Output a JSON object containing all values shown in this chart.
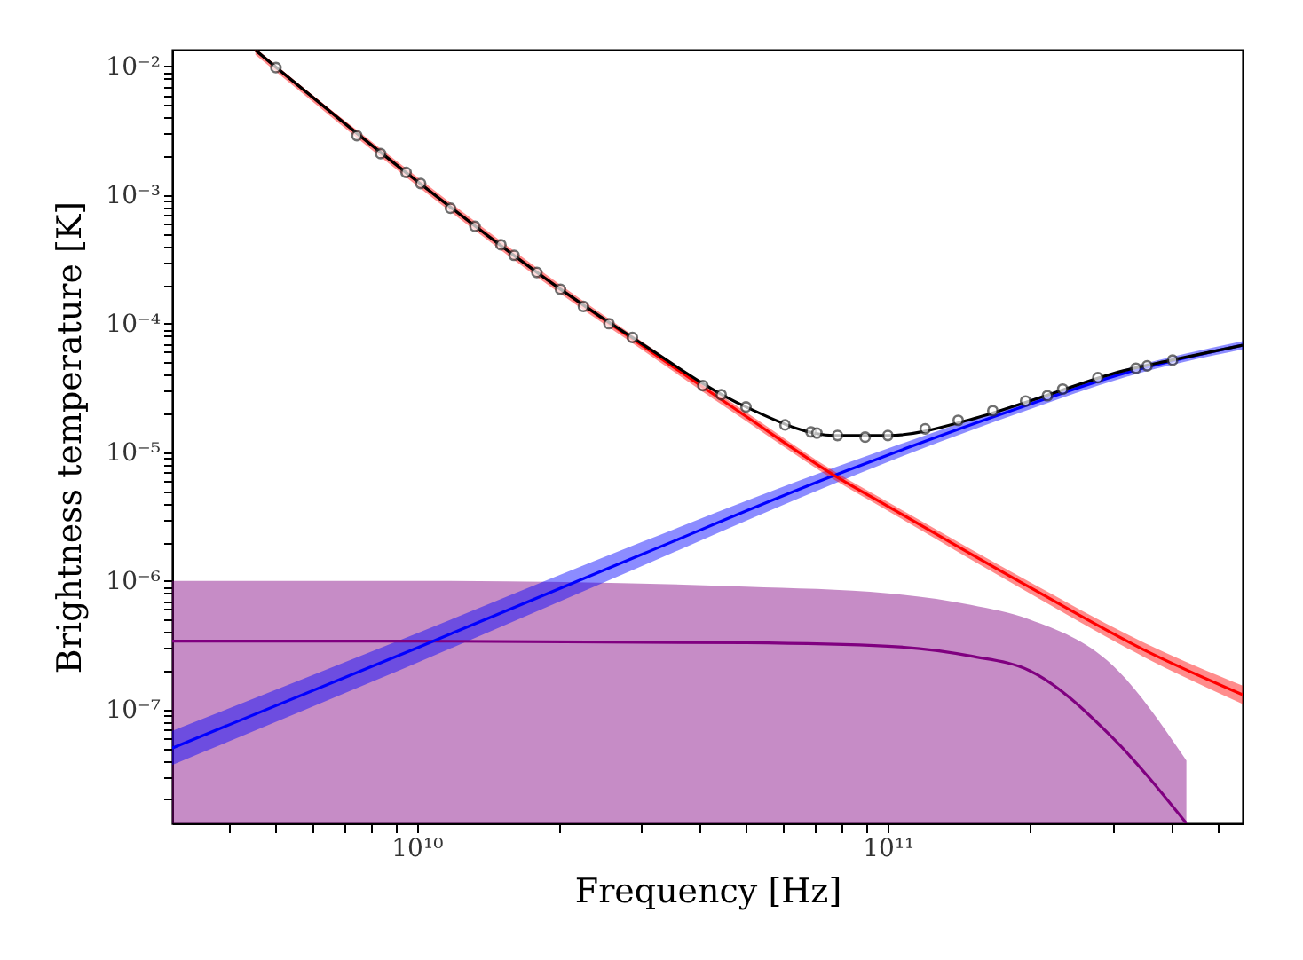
{
  "chart_data": {
    "type": "line",
    "xlabel": "Frequency [Hz]",
    "ylabel": "Brightness temperature [K]",
    "log": "xy",
    "grid": false,
    "xlim": [
      3030000000.0,
      566000000000.0
    ],
    "ylim": [
      1.3e-08,
      0.0135
    ],
    "xticks": [
      {
        "value": 4000000000.0,
        "label": null
      },
      {
        "value": 5000000000.0,
        "label": null
      },
      {
        "value": 6000000000.0,
        "label": null
      },
      {
        "value": 7000000000.0,
        "label": null
      },
      {
        "value": 8000000000.0,
        "label": null
      },
      {
        "value": 9000000000.0,
        "label": null
      },
      {
        "value": 10000000000.0,
        "label": "10¹⁰"
      },
      {
        "value": 20000000000.0,
        "label": null
      },
      {
        "value": 30000000000.0,
        "label": null
      },
      {
        "value": 40000000000.0,
        "label": null
      },
      {
        "value": 50000000000.0,
        "label": null
      },
      {
        "value": 60000000000.0,
        "label": null
      },
      {
        "value": 70000000000.0,
        "label": null
      },
      {
        "value": 80000000000.0,
        "label": null
      },
      {
        "value": 90000000000.0,
        "label": null
      },
      {
        "value": 100000000000.0,
        "label": "10¹¹"
      },
      {
        "value": 200000000000.0,
        "label": null
      },
      {
        "value": 300000000000.0,
        "label": null
      },
      {
        "value": 400000000000.0,
        "label": null
      },
      {
        "value": 500000000000.0,
        "label": null
      }
    ],
    "yticks": [
      {
        "value": 2e-08,
        "label": null
      },
      {
        "value": 3e-08,
        "label": null
      },
      {
        "value": 4e-08,
        "label": null
      },
      {
        "value": 5e-08,
        "label": null
      },
      {
        "value": 6e-08,
        "label": null
      },
      {
        "value": 7e-08,
        "label": null
      },
      {
        "value": 8e-08,
        "label": null
      },
      {
        "value": 9e-08,
        "label": null
      },
      {
        "value": 1e-07,
        "label": "10⁻⁷"
      },
      {
        "value": 2e-07,
        "label": null
      },
      {
        "value": 3e-07,
        "label": null
      },
      {
        "value": 4e-07,
        "label": null
      },
      {
        "value": 5e-07,
        "label": null
      },
      {
        "value": 6e-07,
        "label": null
      },
      {
        "value": 7e-07,
        "label": null
      },
      {
        "value": 8e-07,
        "label": null
      },
      {
        "value": 9e-07,
        "label": null
      },
      {
        "value": 1e-06,
        "label": "10⁻⁶"
      },
      {
        "value": 2e-06,
        "label": null
      },
      {
        "value": 3e-06,
        "label": null
      },
      {
        "value": 4e-06,
        "label": null
      },
      {
        "value": 5e-06,
        "label": null
      },
      {
        "value": 6e-06,
        "label": null
      },
      {
        "value": 7e-06,
        "label": null
      },
      {
        "value": 8e-06,
        "label": null
      },
      {
        "value": 9e-06,
        "label": null
      },
      {
        "value": 1e-05,
        "label": "10⁻⁵"
      },
      {
        "value": 2e-05,
        "label": null
      },
      {
        "value": 3e-05,
        "label": null
      },
      {
        "value": 4e-05,
        "label": null
      },
      {
        "value": 5e-05,
        "label": null
      },
      {
        "value": 6e-05,
        "label": null
      },
      {
        "value": 7e-05,
        "label": null
      },
      {
        "value": 8e-05,
        "label": null
      },
      {
        "value": 9e-05,
        "label": null
      },
      {
        "value": 0.0001,
        "label": "10⁻⁴"
      },
      {
        "value": 0.0002,
        "label": null
      },
      {
        "value": 0.0003,
        "label": null
      },
      {
        "value": 0.0004,
        "label": null
      },
      {
        "value": 0.0005,
        "label": null
      },
      {
        "value": 0.0006,
        "label": null
      },
      {
        "value": 0.0007,
        "label": null
      },
      {
        "value": 0.0008,
        "label": null
      },
      {
        "value": 0.0009,
        "label": null
      },
      {
        "value": 0.001,
        "label": "10⁻³"
      },
      {
        "value": 0.002,
        "label": null
      },
      {
        "value": 0.003,
        "label": null
      },
      {
        "value": 0.004,
        "label": null
      },
      {
        "value": 0.005,
        "label": null
      },
      {
        "value": 0.006,
        "label": null
      },
      {
        "value": 0.007,
        "label": null
      },
      {
        "value": 0.008,
        "label": null
      },
      {
        "value": 0.009,
        "label": null
      },
      {
        "value": 0.01,
        "label": "10⁻²"
      }
    ],
    "series": [
      {
        "color": "#800080",
        "x": [
          3030000000.0,
          10000000000.0,
          50000000000.0,
          100000000000.0,
          150000000000.0,
          200000000000.0,
          300000000000.0,
          430000000000.0
        ],
        "values": [
          3.4e-07,
          3.4e-07,
          3.3e-07,
          3.1e-07,
          2.6e-07,
          2e-07,
          6e-08,
          1.3e-08
        ],
        "lower": [
          1.3e-08,
          1.3e-08,
          1.3e-08,
          1.3e-08,
          1.3e-08,
          1.3e-08,
          1.3e-08,
          1.3e-08
        ],
        "upper": [
          1e-06,
          1e-06,
          9e-07,
          8e-07,
          6.5e-07,
          5e-07,
          2.2e-07,
          4e-08
        ]
      },
      {
        "color": "#0000ff",
        "x": [
          3030000000.0,
          10000000000.0,
          30000000000.0,
          77000000000.0,
          100000000000.0,
          196000000000.0,
          316000000000.0,
          566000000000.0
        ],
        "values": [
          5e-08,
          3e-07,
          1.6e-06,
          6.6e-06,
          9.5e-06,
          2.3e-05,
          4.1e-05,
          6.8e-05
        ],
        "lower": [
          3.7e-08,
          2.3e-07,
          1.3e-06,
          5.7e-06,
          8.4e-06,
          2.1e-05,
          3.8e-05,
          6.3e-05
        ],
        "upper": [
          6.8e-08,
          3.9e-07,
          2e-06,
          7.6e-06,
          1.07e-05,
          2.5e-05,
          4.4e-05,
          7.3e-05
        ]
      },
      {
        "color": "#ff0000",
        "x": [
          4550000000.0,
          10000000000.0,
          20000000000.0,
          30000000000.0,
          50000000000.0,
          77000000000.0,
          100000000000.0,
          200000000000.0,
          350000000000.0,
          566000000000.0
        ],
        "values": [
          0.0134,
          0.00129,
          0.00019,
          6.8e-05,
          1.9e-05,
          6.6e-06,
          3.8e-06,
          8.9e-07,
          2.9e-07,
          1.3e-07
        ],
        "lower": [
          0.0123,
          0.00119,
          0.000175,
          6.3e-05,
          1.75e-05,
          6.1e-06,
          3.5e-06,
          8e-07,
          2.55e-07,
          1.1e-07
        ],
        "upper": [
          0.0135,
          0.00139,
          0.000205,
          7.3e-05,
          2.05e-05,
          7.1e-06,
          4.1e-06,
          9.8e-07,
          3.3e-07,
          1.53e-07
        ]
      },
      {
        "color": "#000000",
        "x": [
          4550000000.0,
          10000000000.0,
          20000000000.0,
          30000000000.0,
          50000000000.0,
          77000000000.0,
          100000000000.0,
          150000000000.0,
          200000000000.0,
          316000000000.0,
          400000000000.0,
          566000000000.0
        ],
        "values": [
          0.0134,
          0.00129,
          0.00019,
          7e-05,
          2.25e-05,
          1.35e-05,
          1.35e-05,
          1.8e-05,
          2.5e-05,
          4.3e-05,
          5.2e-05,
          6.8e-05
        ]
      },
      {
        "type": "scatter",
        "color": "#333333",
        "marker": "circle",
        "x": [
          5030000000.0,
          7470000000.0,
          8390000000.0,
          9500000000.0,
          10200000000.0,
          11800000000.0,
          13300000000.0,
          15100000000.0,
          16100000000.0,
          18000000000.0,
          20200000000.0,
          22600000000.0,
          25600000000.0,
          28700000000.0,
          40500000000.0,
          44300000000.0,
          50000000000.0,
          60500000000.0,
          68700000000.0,
          70700000000.0,
          78200000000.0,
          89500000000.0,
          100000000000.0,
          120000000000.0,
          141000000000.0,
          167000000000.0,
          196000000000.0,
          218000000000.0,
          235000000000.0,
          279000000000.0,
          336000000000.0,
          355000000000.0,
          402000000000.0
        ],
        "values": [
          0.0098,
          0.0029,
          0.0021,
          0.0015,
          0.00123,
          0.00079,
          0.00057,
          0.00041,
          0.00034,
          0.00025,
          0.000185,
          0.000136,
          0.0001,
          7.8e-05,
          3.3e-05,
          2.8e-05,
          2.25e-05,
          1.63e-05,
          1.44e-05,
          1.41e-05,
          1.35e-05,
          1.31e-05,
          1.35e-05,
          1.52e-05,
          1.77e-05,
          2.1e-05,
          2.5e-05,
          2.75e-05,
          3.1e-05,
          3.8e-05,
          4.5e-05,
          4.7e-05,
          5.2e-05
        ]
      }
    ]
  }
}
